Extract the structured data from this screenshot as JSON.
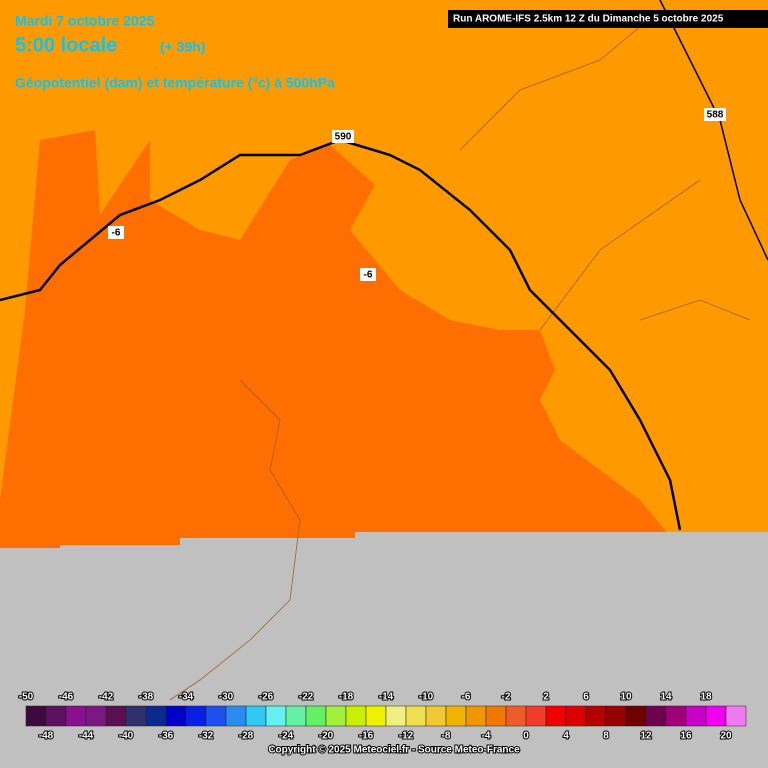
{
  "header": {
    "date": "Mardi 7 octobre 2025",
    "time": "5:00 locale",
    "lead": "(+ 39h)",
    "subtitle": "Géopotentiel (dam) et température (°c) à 500hPa",
    "run": "Run AROME-IFS 2.5km 12 Z du Dimanche 5 octobre 2025"
  },
  "map": {
    "labels": [
      "590",
      "588",
      "-6",
      "-6"
    ]
  },
  "colorbar": {
    "levels": [
      -50,
      -48,
      -46,
      -44,
      -42,
      -40,
      -38,
      -36,
      -34,
      -32,
      -30,
      -28,
      -26,
      -24,
      -22,
      -20,
      -18,
      -16,
      -14,
      -12,
      -10,
      -8,
      -6,
      -4,
      -2,
      0,
      2,
      4,
      6,
      8,
      10,
      12,
      14,
      16,
      18,
      20
    ],
    "colors": [
      "#3d0a40",
      "#5c1060",
      "#8a1090",
      "#7a1a80",
      "#5a1050",
      "#303070",
      "#0a2a90",
      "#0000c8",
      "#0a1ee6",
      "#1e50f0",
      "#2a8cf0",
      "#30c8f0",
      "#64f0f0",
      "#64f0a0",
      "#64f064",
      "#a0f03c",
      "#c8f000",
      "#f0f000",
      "#f0f080",
      "#f0e050",
      "#f0c832",
      "#f0b400",
      "#f09600",
      "#f07800",
      "#f05a28",
      "#f03c28",
      "#f00000",
      "#dc0000",
      "#b40000",
      "#960000",
      "#6e0000",
      "#6e0050",
      "#a00078",
      "#c800c8",
      "#f000f0",
      "#f078f0"
    ]
  },
  "footer": {
    "copyright": "Copyright © 2025 Meteociel.fr - Source Meteo-France"
  }
}
